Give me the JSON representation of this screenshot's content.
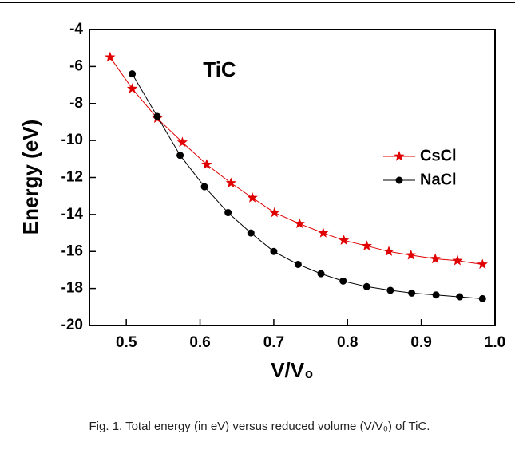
{
  "chart_data": {
    "type": "line",
    "title": "TiC",
    "x_label": "V/V₀",
    "y_label": "Energy (eV)",
    "caption": "Fig. 1. Total energy (in eV) versus reduced volume (V/V₀) of TiC.",
    "xlim": [
      0.45,
      1.0
    ],
    "ylim": [
      -20,
      -4
    ],
    "xticks": [
      0.5,
      0.6,
      0.7,
      0.8,
      0.9,
      {
        "value": 1.0,
        "label": "1.0"
      }
    ],
    "yticks": [
      -4,
      -6,
      -8,
      -10,
      -12,
      -14,
      -16,
      -18,
      -20
    ],
    "legend": "right",
    "series": [
      {
        "name": "CsCl",
        "color": "#e00000",
        "marker": "star",
        "x": [
          0.478,
          0.508,
          0.542,
          0.576,
          0.609,
          0.642,
          0.671,
          0.701,
          0.735,
          0.767,
          0.795,
          0.826,
          0.856,
          0.886,
          0.919,
          0.949,
          0.983
        ],
        "values": [
          -5.5,
          -7.2,
          -8.8,
          -10.1,
          -11.3,
          -12.3,
          -13.1,
          -13.9,
          -14.5,
          -15.0,
          -15.4,
          -15.7,
          -16.0,
          -16.2,
          -16.4,
          -16.5,
          -16.7
        ]
      },
      {
        "name": "NaCl",
        "color": "#000000",
        "marker": "circle",
        "x": [
          0.508,
          0.542,
          0.573,
          0.606,
          0.638,
          0.669,
          0.7,
          0.733,
          0.764,
          0.794,
          0.826,
          0.858,
          0.887,
          0.92,
          0.952,
          0.983
        ],
        "values": [
          -6.4,
          -8.7,
          -10.8,
          -12.5,
          -13.9,
          -15.0,
          -16.0,
          -16.7,
          -17.2,
          -17.6,
          -17.9,
          -18.1,
          -18.25,
          -18.35,
          -18.45,
          -18.55
        ]
      }
    ]
  }
}
